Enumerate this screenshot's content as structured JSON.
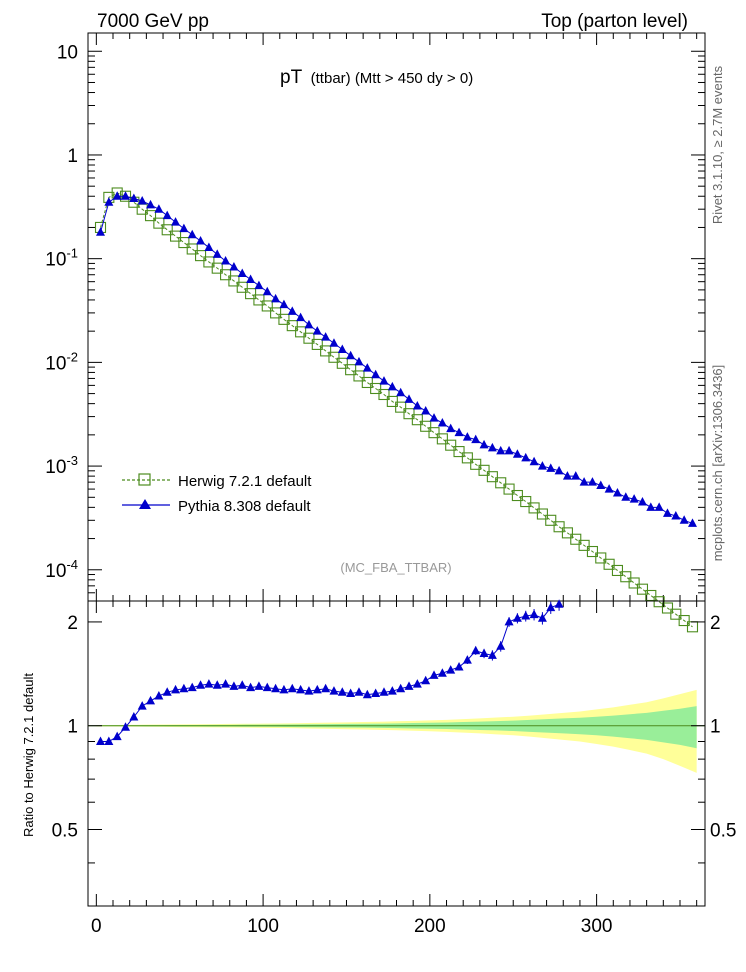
{
  "header": {
    "left": "7000 GeV pp",
    "right": "Top (parton level)"
  },
  "side_text": {
    "rivet": "Rivet 3.1.10, ≥ 2.7M events",
    "mcplots": "mcplots.cern.ch [arXiv:1306.3436]"
  },
  "chart_data": [
    {
      "type": "scatter",
      "panel": "main",
      "title_main": "pT",
      "title_sub": "(ttbar) (Mtt > 450 dy > 0)",
      "watermark": "(MC_FBA_TTBAR)",
      "yscale": "log",
      "xlim": [
        -5,
        365
      ],
      "ylim": [
        5e-05,
        15
      ],
      "y_tick_labels": [
        "10",
        "1",
        "10^-1",
        "10^-2",
        "10^-3",
        "10^-4"
      ],
      "legend_placement": "lower-left",
      "x": [
        2.5,
        7.5,
        12.5,
        17.5,
        22.5,
        27.5,
        32.5,
        37.5,
        42.5,
        47.5,
        52.5,
        57.5,
        62.5,
        67.5,
        72.5,
        77.5,
        82.5,
        87.5,
        92.5,
        97.5,
        102.5,
        107.5,
        112.5,
        117.5,
        122.5,
        127.5,
        132.5,
        137.5,
        142.5,
        147.5,
        152.5,
        157.5,
        162.5,
        167.5,
        172.5,
        177.5,
        182.5,
        187.5,
        192.5,
        197.5,
        202.5,
        207.5,
        212.5,
        217.5,
        222.5,
        227.5,
        232.5,
        237.5,
        242.5,
        247.5,
        252.5,
        257.5,
        262.5,
        267.5,
        272.5,
        277.5,
        282.5,
        287.5,
        292.5,
        297.5,
        302.5,
        307.5,
        312.5,
        317.5,
        322.5,
        327.5,
        332.5,
        337.5,
        342.5,
        347.5,
        352.5,
        357.5
      ],
      "series": [
        {
          "name": "Herwig 7.2.1 default",
          "color": "#4c8c1e",
          "marker": "open-square",
          "line": "dashed",
          "values": [
            0.2,
            0.39,
            0.43,
            0.4,
            0.35,
            0.3,
            0.26,
            0.22,
            0.19,
            0.165,
            0.143,
            0.124,
            0.107,
            0.093,
            0.081,
            0.07,
            0.061,
            0.053,
            0.046,
            0.04,
            0.035,
            0.03,
            0.026,
            0.0226,
            0.0197,
            0.0171,
            0.0149,
            0.0129,
            0.0112,
            0.0098,
            0.0085,
            0.0074,
            0.0064,
            0.0056,
            0.0049,
            0.0042,
            0.0037,
            0.0032,
            0.0028,
            0.00242,
            0.0021,
            0.00183,
            0.00159,
            0.00138,
            0.0012,
            0.00104,
            0.00091,
            0.00079,
            0.00069,
            0.0006,
            0.00052,
            0.000455,
            0.000395,
            0.000345,
            0.0003,
            0.00026,
            0.000227,
            0.000197,
            0.000172,
            0.00015,
            0.00013,
            0.000113,
            9.85e-05,
            8.57e-05,
            7.46e-05,
            6.5e-05,
            5.65e-05,
            4.92e-05,
            4.28e-05,
            3.73e-05,
            3.24e-05,
            2.82e-05
          ]
        },
        {
          "name": "Pythia 8.308 default",
          "color": "#0000cc",
          "marker": "filled-triangle",
          "line": "solid",
          "values": [
            0.18,
            0.35,
            0.4,
            0.4,
            0.38,
            0.36,
            0.33,
            0.3,
            0.26,
            0.225,
            0.195,
            0.17,
            0.148,
            0.128,
            0.11,
            0.095,
            0.083,
            0.072,
            0.063,
            0.055,
            0.048,
            0.041,
            0.036,
            0.031,
            0.027,
            0.023,
            0.02,
            0.0175,
            0.0153,
            0.0133,
            0.0116,
            0.0101,
            0.0088,
            0.0076,
            0.0066,
            0.0058,
            0.0051,
            0.0044,
            0.0038,
            0.0034,
            0.0029,
            0.0026,
            0.0023,
            0.0021,
            0.0019,
            0.0018,
            0.0016,
            0.0015,
            0.0014,
            0.0014,
            0.0013,
            0.0012,
            0.0011,
            0.001,
            0.00095,
            0.0009,
            0.0008,
            0.0008,
            0.0007,
            0.0007,
            0.00065,
            0.0006,
            0.00055,
            0.0005,
            0.00048,
            0.00045,
            0.0004,
            0.0004,
            0.00035,
            0.00033,
            0.0003,
            0.00028
          ]
        }
      ]
    },
    {
      "type": "scatter",
      "panel": "ratio",
      "ylabel": "Ratio to Herwig 7.2.1 default",
      "xlim": [
        -5,
        365
      ],
      "ylim": [
        0.3,
        2.3
      ],
      "x_tick_labels": [
        "0",
        "100",
        "200",
        "300"
      ],
      "y_tick_labels": [
        "2",
        "1",
        "0.5"
      ],
      "band_x": [
        0,
        10,
        20,
        30,
        40,
        50,
        60,
        70,
        80,
        90,
        100,
        110,
        120,
        130,
        140,
        150,
        160,
        170,
        180,
        190,
        200,
        210,
        220,
        230,
        240,
        250,
        260,
        270,
        280,
        290,
        300,
        310,
        320,
        330,
        340,
        350,
        360
      ],
      "band_yellow": [
        0.004,
        0.005,
        0.006,
        0.007,
        0.008,
        0.009,
        0.01,
        0.011,
        0.012,
        0.013,
        0.014,
        0.015,
        0.017,
        0.019,
        0.021,
        0.023,
        0.025,
        0.027,
        0.03,
        0.033,
        0.036,
        0.04,
        0.045,
        0.05,
        0.056,
        0.062,
        0.07,
        0.08,
        0.09,
        0.1,
        0.115,
        0.13,
        0.15,
        0.17,
        0.2,
        0.235,
        0.27
      ],
      "band_green": [
        0.002,
        0.003,
        0.003,
        0.004,
        0.004,
        0.005,
        0.005,
        0.006,
        0.006,
        0.007,
        0.007,
        0.008,
        0.009,
        0.01,
        0.011,
        0.012,
        0.013,
        0.014,
        0.016,
        0.018,
        0.02,
        0.022,
        0.025,
        0.028,
        0.031,
        0.035,
        0.04,
        0.045,
        0.05,
        0.055,
        0.062,
        0.07,
        0.08,
        0.09,
        0.105,
        0.12,
        0.14
      ],
      "ratio_x": [
        2.5,
        7.5,
        12.5,
        17.5,
        22.5,
        27.5,
        32.5,
        37.5,
        42.5,
        47.5,
        52.5,
        57.5,
        62.5,
        67.5,
        72.5,
        77.5,
        82.5,
        87.5,
        92.5,
        97.5,
        102.5,
        107.5,
        112.5,
        117.5,
        122.5,
        127.5,
        132.5,
        137.5,
        142.5,
        147.5,
        152.5,
        157.5,
        162.5,
        167.5,
        172.5,
        177.5,
        182.5,
        187.5,
        192.5,
        197.5,
        202.5,
        207.5,
        212.5,
        217.5,
        222.5,
        227.5,
        232.5,
        237.5,
        242.5,
        247.5,
        252.5,
        257.5,
        262.5,
        267.5,
        272.5,
        277.5,
        282.5
      ],
      "ratio_values": [
        0.9,
        0.9,
        0.93,
        0.99,
        1.06,
        1.14,
        1.18,
        1.22,
        1.25,
        1.27,
        1.28,
        1.29,
        1.31,
        1.32,
        1.31,
        1.32,
        1.3,
        1.31,
        1.29,
        1.3,
        1.29,
        1.28,
        1.27,
        1.28,
        1.27,
        1.26,
        1.27,
        1.28,
        1.26,
        1.25,
        1.24,
        1.25,
        1.23,
        1.24,
        1.25,
        1.26,
        1.28,
        1.3,
        1.32,
        1.35,
        1.4,
        1.42,
        1.45,
        1.48,
        1.55,
        1.65,
        1.62,
        1.6,
        1.7,
        2.0,
        2.05,
        2.08,
        2.1,
        2.05,
        2.2,
        2.25,
        2.35
      ],
      "ratio_errors": [
        0.01,
        0.01,
        0.01,
        0.01,
        0.01,
        0.01,
        0.01,
        0.01,
        0.01,
        0.01,
        0.01,
        0.01,
        0.01,
        0.01,
        0.012,
        0.012,
        0.012,
        0.012,
        0.012,
        0.012,
        0.013,
        0.013,
        0.013,
        0.014,
        0.014,
        0.014,
        0.015,
        0.015,
        0.016,
        0.016,
        0.017,
        0.017,
        0.018,
        0.018,
        0.019,
        0.02,
        0.02,
        0.022,
        0.024,
        0.026,
        0.028,
        0.03,
        0.032,
        0.035,
        0.04,
        0.045,
        0.05,
        0.055,
        0.06,
        0.065,
        0.07,
        0.075,
        0.08,
        0.085,
        0.09,
        0.095,
        0.1
      ]
    }
  ]
}
